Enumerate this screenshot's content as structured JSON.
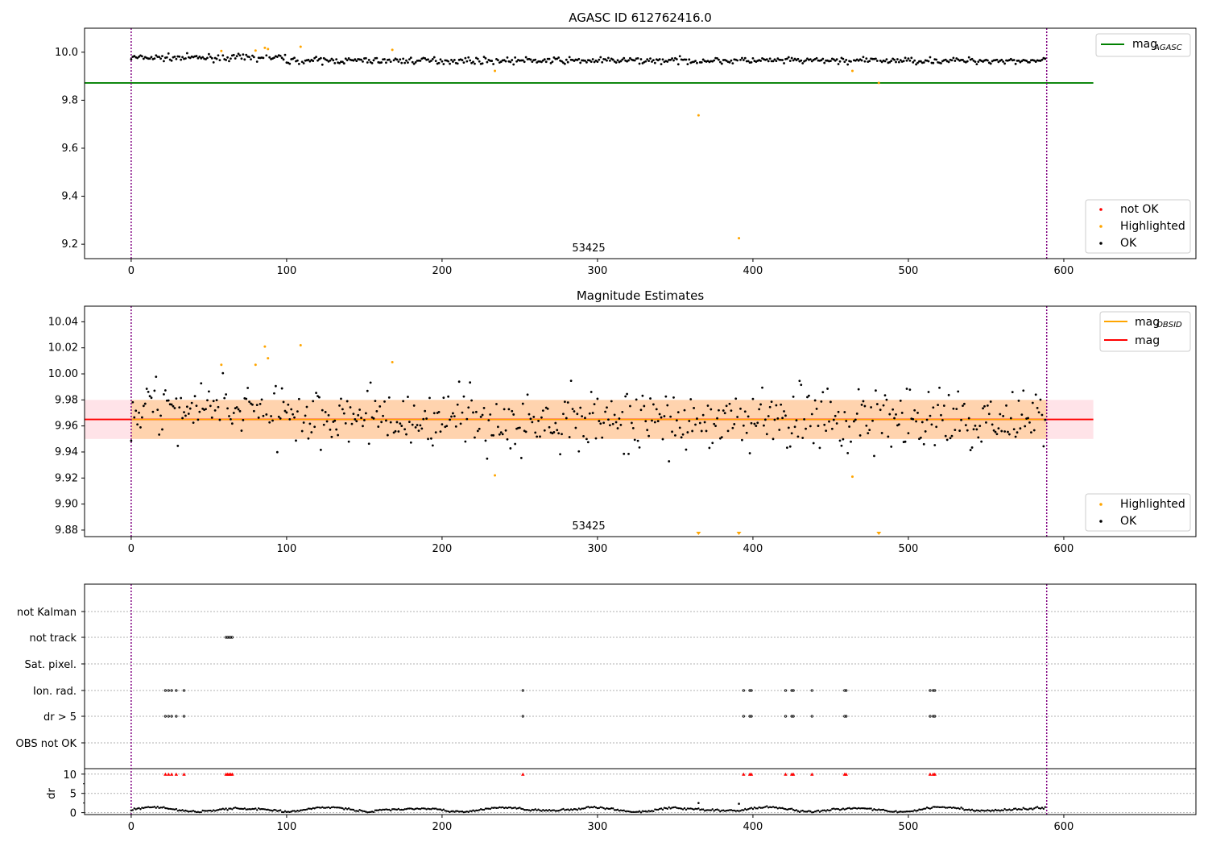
{
  "chart_data": [
    {
      "type": "scatter",
      "title": "AGASC ID 612762416.0",
      "annotation": "53425",
      "xlim": [
        -30,
        685
      ],
      "ylim": [
        9.14,
        10.1
      ],
      "xticks": [
        0,
        100,
        200,
        300,
        400,
        500,
        600
      ],
      "yticks": [
        9.2,
        9.4,
        9.6,
        9.8,
        10.0
      ],
      "xtick_labels": [
        "0",
        "100",
        "200",
        "300",
        "400",
        "500",
        "600"
      ],
      "ytick_labels": [
        "9.2",
        "9.4",
        "9.6",
        "9.8",
        "10.0"
      ],
      "vlines": [
        0,
        589
      ],
      "reference_line": {
        "label": "mag",
        "subscript": "AGASC",
        "y": 9.872,
        "x_end": 619,
        "color": "#008000"
      },
      "legend_lines": [
        {
          "label": "mag",
          "subscript": "AGASC",
          "color": "#008000"
        }
      ],
      "legend_points": [
        {
          "label": "not OK",
          "color": "#ff0000"
        },
        {
          "label": "Highlighted",
          "color": "#ffa500"
        },
        {
          "label": "OK",
          "color": "#000000"
        }
      ],
      "series": [
        {
          "name": "Highlighted",
          "color": "#ffa500",
          "points": [
            [
              58,
              10.005
            ],
            [
              80,
              10.007
            ],
            [
              86,
              10.018
            ],
            [
              88,
              10.013
            ],
            [
              109,
              10.023
            ],
            [
              168,
              10.01
            ],
            [
              234,
              9.922
            ],
            [
              365,
              9.737
            ],
            [
              391,
              9.225
            ],
            [
              464,
              9.922
            ],
            [
              481,
              9.872
            ]
          ]
        }
      ],
      "ok_series": {
        "name": "OK",
        "color": "#000000",
        "n": 589,
        "center": 9.965,
        "spread": 0.012
      }
    },
    {
      "type": "scatter",
      "title": "Magnitude Estimates",
      "annotation": "53425",
      "xlim": [
        -30,
        685
      ],
      "ylim": [
        9.875,
        10.052
      ],
      "xticks": [
        0,
        100,
        200,
        300,
        400,
        500,
        600
      ],
      "yticks": [
        9.88,
        9.9,
        9.92,
        9.94,
        9.96,
        9.98,
        10.0,
        10.02,
        10.04
      ],
      "xtick_labels": [
        "0",
        "100",
        "200",
        "300",
        "400",
        "500",
        "600"
      ],
      "ytick_labels": [
        "9.88",
        "9.90",
        "9.92",
        "9.94",
        "9.96",
        "9.98",
        "10.00",
        "10.02",
        "10.04"
      ],
      "vlines": [
        0,
        589
      ],
      "mag_line": {
        "y": 9.965,
        "color": "#ff0000"
      },
      "mag_band": {
        "y0": 9.95,
        "y1": 9.98,
        "color": "#ffc0cb"
      },
      "mag_obsid": {
        "y": 9.965,
        "y0": 9.95,
        "y1": 9.98,
        "color": "#ffa500"
      },
      "legend_lines": [
        {
          "label": "mag",
          "subscript": "OBSID",
          "color": "#ffa500"
        },
        {
          "label": "mag",
          "subscript": "",
          "color": "#ff0000"
        }
      ],
      "legend_points": [
        {
          "label": "Highlighted",
          "color": "#ffa500"
        },
        {
          "label": "OK",
          "color": "#000000"
        }
      ],
      "series": [
        {
          "name": "Highlighted",
          "color": "#ffa500",
          "points": [
            [
              58,
              10.007
            ],
            [
              80,
              10.007
            ],
            [
              86,
              10.021
            ],
            [
              88,
              10.012
            ],
            [
              109,
              10.022
            ],
            [
              168,
              10.009
            ],
            [
              234,
              9.922
            ],
            [
              464,
              9.921
            ]
          ]
        }
      ],
      "out_of_range_markers": [
        365,
        391,
        481
      ],
      "ok_series": {
        "name": "OK",
        "color": "#000000",
        "n": 589,
        "center": 9.965,
        "spread": 0.012
      }
    },
    {
      "type": "scatter",
      "title": "",
      "xlim": [
        -30,
        685
      ],
      "xticks": [
        0,
        100,
        200,
        300,
        400,
        500,
        600
      ],
      "xtick_labels": [
        "0",
        "100",
        "200",
        "300",
        "400",
        "500",
        "600"
      ],
      "vlines": [
        0,
        589
      ],
      "flag_rows": [
        "not Kalman",
        "not track",
        "Sat. pixel.",
        "Ion. rad.",
        "dr > 5",
        "OBS not OK"
      ],
      "flags": {
        "not Kalman": [],
        "not track": [
          61,
          62,
          63,
          64,
          65
        ],
        "Sat. pixel.": [],
        "Ion. rad.": [
          22,
          24,
          26,
          29,
          34,
          252,
          394,
          398,
          399,
          421,
          425,
          426,
          438,
          459,
          460,
          514,
          516,
          517
        ],
        "dr > 5": [
          22,
          24,
          26,
          29,
          34,
          252,
          394,
          398,
          399,
          421,
          425,
          426,
          438,
          459,
          460,
          514,
          516,
          517
        ],
        "OBS not OK": []
      },
      "dr_axis": {
        "ylabel": "dr",
        "ylim": [
          -0.5,
          11
        ],
        "yticks": [
          0,
          5,
          10
        ],
        "ytick_labels": [
          "0",
          "5",
          "10"
        ]
      },
      "dr_red_markers": [
        22,
        24,
        26,
        29,
        34,
        61,
        62,
        63,
        64,
        65,
        252,
        394,
        398,
        399,
        421,
        425,
        426,
        438,
        459,
        460,
        514,
        516,
        517
      ],
      "dr_outliers": [
        [
          365,
          2.5
        ],
        [
          391,
          2.3
        ]
      ],
      "dr_series": {
        "n": 589,
        "mean": 0.8
      }
    }
  ]
}
